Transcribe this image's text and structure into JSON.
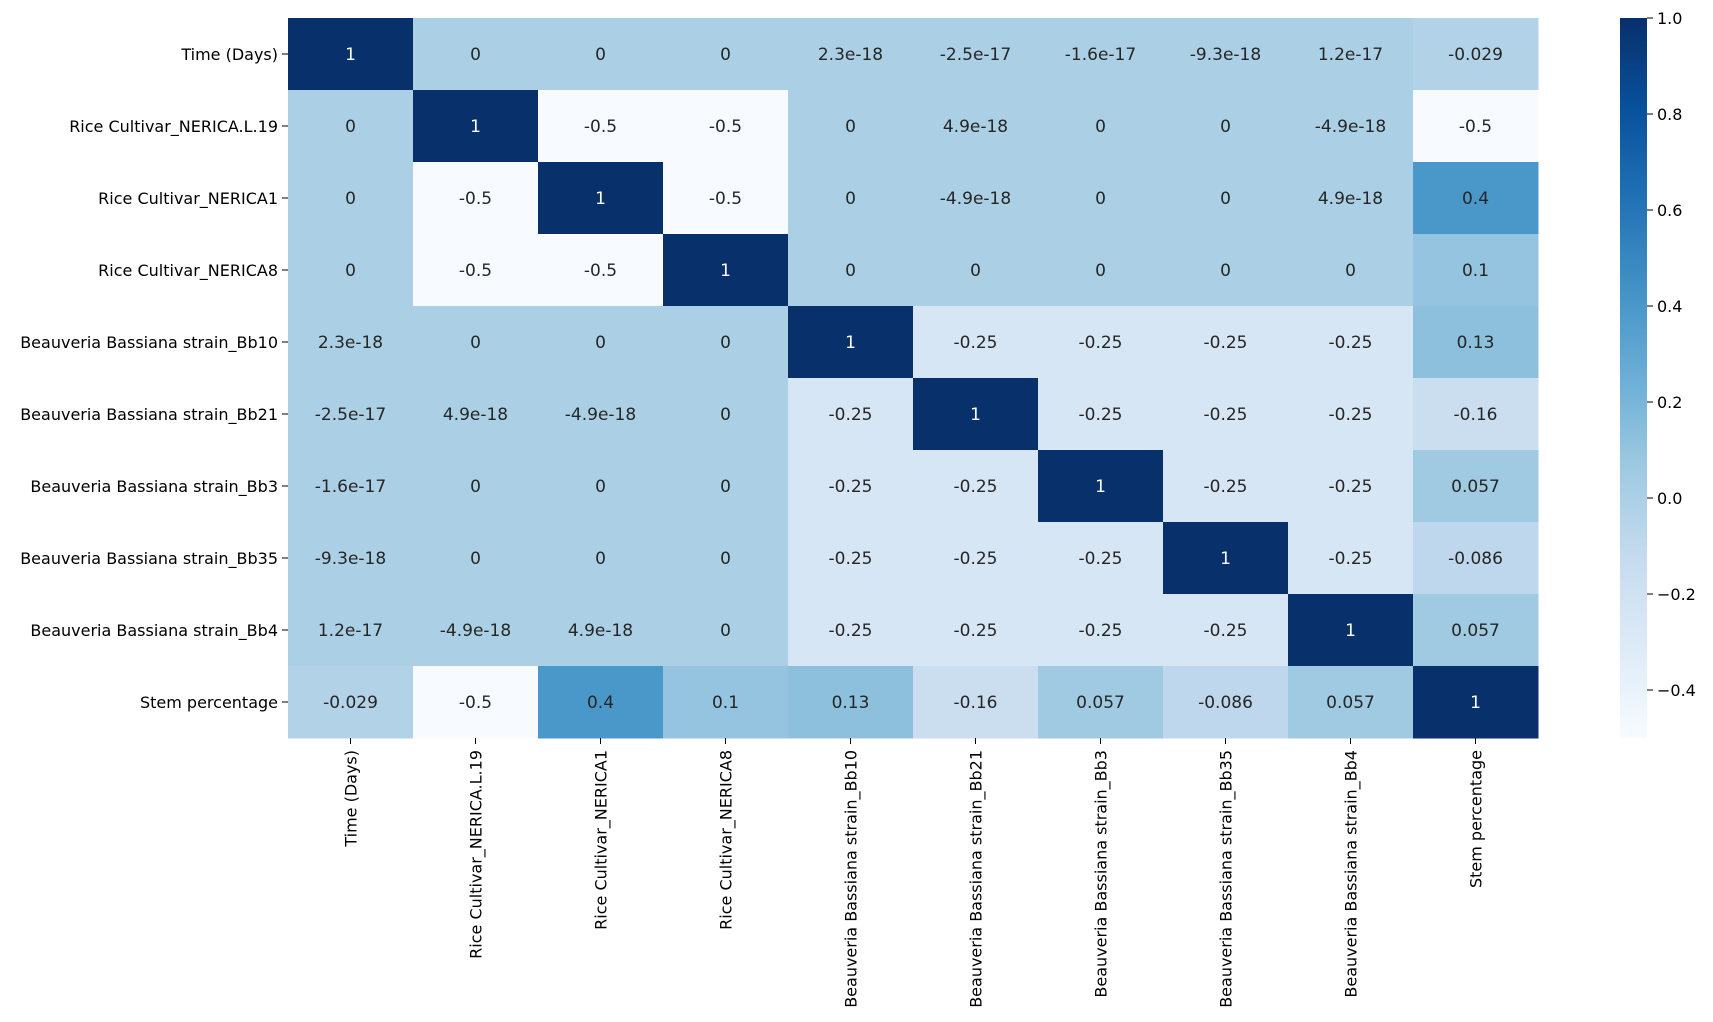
{
  "chart_data": {
    "type": "heatmap",
    "title": "",
    "xlabel": "",
    "ylabel": "",
    "row_labels": [
      "Time (Days)",
      "Rice Cultivar_NERICA.L.19",
      "Rice Cultivar_NERICA1",
      "Rice Cultivar_NERICA8",
      "Beauveria Bassiana strain_Bb10",
      "Beauveria Bassiana strain_Bb21",
      "Beauveria Bassiana strain_Bb3",
      "Beauveria Bassiana strain_Bb35",
      "Beauveria Bassiana strain_Bb4",
      "Stem percentage"
    ],
    "col_labels": [
      "Time (Days)",
      "Rice Cultivar_NERICA.L.19",
      "Rice Cultivar_NERICA1",
      "Rice Cultivar_NERICA8",
      "Beauveria Bassiana strain_Bb10",
      "Beauveria Bassiana strain_Bb21",
      "Beauveria Bassiana strain_Bb3",
      "Beauveria Bassiana strain_Bb35",
      "Beauveria Bassiana strain_Bb4",
      "Stem percentage"
    ],
    "cell_text": [
      [
        "1",
        "0",
        "0",
        "0",
        "2.3e-18",
        "-2.5e-17",
        "-1.6e-17",
        "-9.3e-18",
        "1.2e-17",
        "-0.029"
      ],
      [
        "0",
        "1",
        "-0.5",
        "-0.5",
        "0",
        "4.9e-18",
        "0",
        "0",
        "-4.9e-18",
        "-0.5"
      ],
      [
        "0",
        "-0.5",
        "1",
        "-0.5",
        "0",
        "-4.9e-18",
        "0",
        "0",
        "4.9e-18",
        "0.4"
      ],
      [
        "0",
        "-0.5",
        "-0.5",
        "1",
        "0",
        "0",
        "0",
        "0",
        "0",
        "0.1"
      ],
      [
        "2.3e-18",
        "0",
        "0",
        "0",
        "1",
        "-0.25",
        "-0.25",
        "-0.25",
        "-0.25",
        "0.13"
      ],
      [
        "-2.5e-17",
        "4.9e-18",
        "-4.9e-18",
        "0",
        "-0.25",
        "1",
        "-0.25",
        "-0.25",
        "-0.25",
        "-0.16"
      ],
      [
        "-1.6e-17",
        "0",
        "0",
        "0",
        "-0.25",
        "-0.25",
        "1",
        "-0.25",
        "-0.25",
        "0.057"
      ],
      [
        "-9.3e-18",
        "0",
        "0",
        "0",
        "-0.25",
        "-0.25",
        "-0.25",
        "1",
        "-0.25",
        "-0.086"
      ],
      [
        "1.2e-17",
        "-4.9e-18",
        "4.9e-18",
        "0",
        "-0.25",
        "-0.25",
        "-0.25",
        "-0.25",
        "1",
        "0.057"
      ],
      [
        "-0.029",
        "-0.5",
        "0.4",
        "0.1",
        "0.13",
        "-0.16",
        "0.057",
        "-0.086",
        "0.057",
        "1"
      ]
    ],
    "colorbar": {
      "range": [
        -0.5,
        1.0
      ],
      "ticks": [
        -0.4,
        -0.2,
        0.0,
        0.2,
        0.4,
        0.6,
        0.8,
        1.0
      ],
      "tick_labels": [
        "−0.4",
        "−0.2",
        "0.0",
        "0.2",
        "0.4",
        "0.6",
        "0.8",
        "1.0"
      ],
      "colormap": "Blues",
      "placement": "right"
    },
    "grid": false
  },
  "colors": {
    "colormap_stops": [
      "#f7fbff",
      "#deebf7",
      "#c6dbef",
      "#9ecae1",
      "#6baed6",
      "#4292c6",
      "#2171b5",
      "#08519c",
      "#08306b"
    ],
    "text_dark": "#262626",
    "text_light": "#ffffff"
  }
}
